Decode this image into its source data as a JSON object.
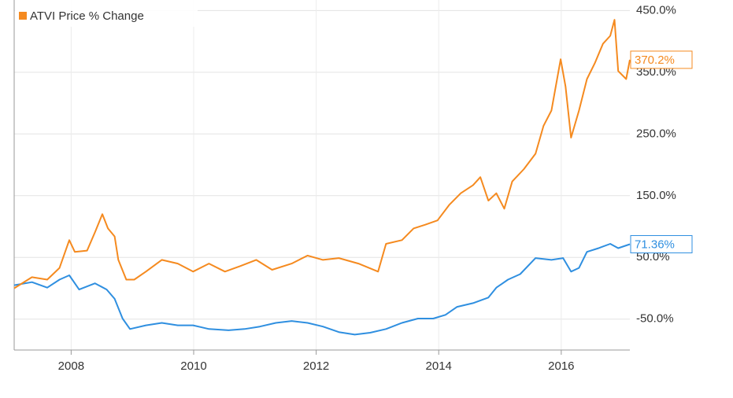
{
  "chart_data": {
    "type": "line",
    "xlim": [
      2007.07,
      2017.12
    ],
    "xticks": [
      2008,
      2010,
      2012,
      2014,
      2016
    ],
    "ylim": [
      -100,
      467
    ],
    "yticks": [
      {
        "value": -50,
        "label": "-50.0%"
      },
      {
        "value": 50,
        "label": "50.0%"
      },
      {
        "value": 150,
        "label": "150.0%"
      },
      {
        "value": 250,
        "label": "250.0%"
      },
      {
        "value": 350,
        "label": "350.0%"
      },
      {
        "value": 450,
        "label": "450.0%"
      }
    ],
    "grid": true,
    "legend": "top-left",
    "series": [
      {
        "color": "#2f8fe0",
        "x": [
          2007.07,
          2007.36,
          2007.61,
          2007.81,
          2007.97,
          2008.13,
          2008.39,
          2008.58,
          2008.71,
          2008.84,
          2008.96,
          2009.22,
          2009.48,
          2009.74,
          2009.99,
          2010.25,
          2010.57,
          2010.83,
          2011.08,
          2011.34,
          2011.6,
          2011.86,
          2012.11,
          2012.37,
          2012.63,
          2012.88,
          2013.14,
          2013.4,
          2013.66,
          2013.91,
          2014.11,
          2014.3,
          2014.56,
          2014.81,
          2014.94,
          2015.13,
          2015.33,
          2015.58,
          2015.84,
          2016.03,
          2016.16,
          2016.29,
          2016.42,
          2016.61,
          2016.8,
          2016.93,
          2017.12
        ],
        "values": [
          5,
          10,
          1,
          14,
          21,
          -2,
          8,
          -2,
          -17,
          -49,
          -66,
          -60,
          -56,
          -60,
          -60,
          -66,
          -68,
          -66,
          -62,
          -56,
          -53,
          -56,
          -62,
          -71,
          -75,
          -72,
          -66,
          -56,
          -49,
          -49,
          -43,
          -30,
          -24,
          -15,
          1,
          14,
          23,
          49,
          46,
          49,
          27,
          33,
          59,
          65,
          72,
          65,
          71.36
        ],
        "value_labels": [
          null,
          null,
          null,
          null,
          null,
          null,
          null,
          null,
          null,
          null,
          null,
          null,
          null,
          null,
          null,
          null,
          null,
          null,
          null,
          null,
          null,
          null,
          null,
          null,
          null,
          null,
          null,
          null,
          null,
          null,
          null,
          null,
          null,
          null,
          null,
          null,
          null,
          null,
          null,
          null,
          null,
          null,
          null,
          null,
          null,
          null,
          "71.36%"
        ]
      },
      {
        "name": "ATVI Price % Change",
        "color": "#f58a1f",
        "x": [
          2007.07,
          2007.36,
          2007.61,
          2007.81,
          2007.97,
          2008.06,
          2008.26,
          2008.39,
          2008.51,
          2008.6,
          2008.71,
          2008.77,
          2008.9,
          2009.03,
          2009.22,
          2009.48,
          2009.74,
          2009.99,
          2010.25,
          2010.51,
          2010.76,
          2011.02,
          2011.28,
          2011.6,
          2011.86,
          2012.11,
          2012.37,
          2012.69,
          2013.01,
          2013.14,
          2013.4,
          2013.59,
          2013.78,
          2013.98,
          2014.17,
          2014.36,
          2014.56,
          2014.68,
          2014.81,
          2014.94,
          2015.07,
          2015.2,
          2015.39,
          2015.58,
          2015.71,
          2015.84,
          2015.99,
          2016.07,
          2016.16,
          2016.29,
          2016.42,
          2016.55,
          2016.68,
          2016.8,
          2016.87,
          2016.93,
          2017.06,
          2017.12
        ],
        "values": [
          0,
          18,
          14,
          33,
          78,
          59,
          61,
          91,
          120,
          97,
          84,
          46,
          14,
          14,
          27,
          46,
          40,
          27,
          40,
          27,
          36,
          46,
          30,
          40,
          53,
          46,
          49,
          40,
          27,
          72,
          78,
          97,
          103,
          110,
          135,
          154,
          167,
          180,
          142,
          154,
          129,
          173,
          193,
          218,
          263,
          288,
          371,
          327,
          244,
          288,
          339,
          365,
          396,
          409,
          435,
          352,
          339,
          370.2
        ],
        "value_labels": [
          null,
          null,
          null,
          null,
          null,
          null,
          null,
          null,
          null,
          null,
          null,
          null,
          null,
          null,
          null,
          null,
          null,
          null,
          null,
          null,
          null,
          null,
          null,
          null,
          null,
          null,
          null,
          null,
          null,
          null,
          null,
          null,
          null,
          null,
          null,
          null,
          null,
          null,
          null,
          null,
          null,
          null,
          null,
          null,
          null,
          null,
          null,
          null,
          null,
          null,
          null,
          null,
          null,
          null,
          null,
          null,
          null,
          "370.2%"
        ]
      }
    ]
  }
}
